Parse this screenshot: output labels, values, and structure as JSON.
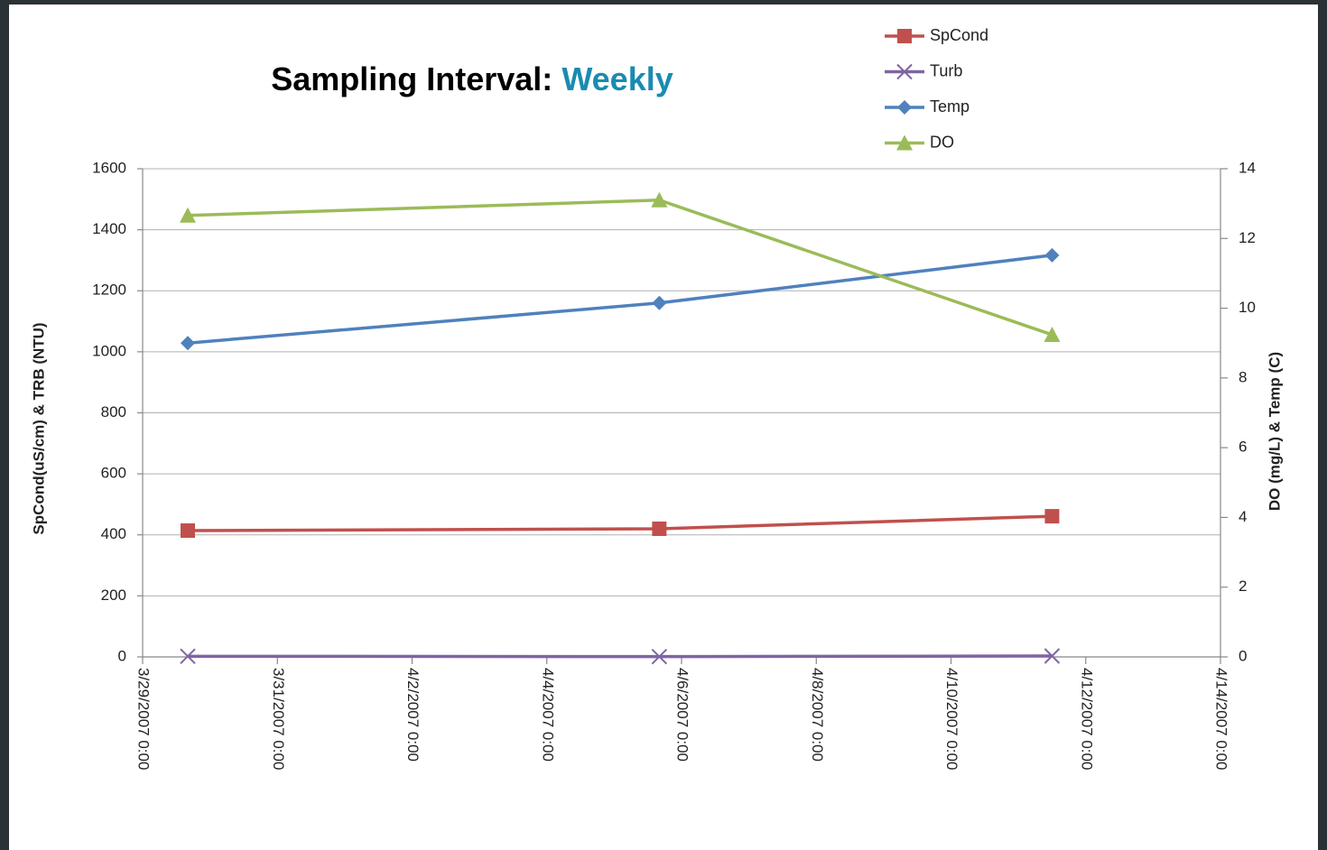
{
  "chart_data": {
    "type": "line",
    "title": [
      "Sampling Interval:",
      "Weekly"
    ],
    "title_colors": [
      "#000000",
      "#1a8bb0"
    ],
    "ylabel": "SpCond(uS/cm) & TRB (NTU)",
    "y2label": "DO (mg/L) & Temp (C)",
    "x": [
      39170.67,
      39177.67,
      39183.5
    ],
    "xlim": [
      39170,
      39186
    ],
    "xticks": [
      {
        "value": 39170,
        "label": "3/29/2007 0:00"
      },
      {
        "value": 39172,
        "label": "3/31/2007 0:00"
      },
      {
        "value": 39174,
        "label": "4/2/2007 0:00"
      },
      {
        "value": 39176,
        "label": "4/4/2007 0:00"
      },
      {
        "value": 39178,
        "label": "4/6/2007 0:00"
      },
      {
        "value": 39180,
        "label": "4/8/2007 0:00"
      },
      {
        "value": 39182,
        "label": "4/10/2007 0:00"
      },
      {
        "value": 39184,
        "label": "4/12/2007 0:00"
      },
      {
        "value": 39186,
        "label": "4/14/2007 0:00"
      }
    ],
    "ylim": [
      0,
      1600
    ],
    "yticks": [
      0,
      200,
      400,
      600,
      800,
      1000,
      1200,
      1400,
      1600
    ],
    "y2lim": [
      0,
      14
    ],
    "y2ticks": [
      0,
      2,
      4,
      6,
      8,
      10,
      12,
      14
    ],
    "grid": true,
    "legend": "top-right",
    "series": [
      {
        "name": "SpCond",
        "color": "#c0504d",
        "marker": "square",
        "values": [
          414,
          420,
          461
        ]
      },
      {
        "name": "Turb",
        "color": "#8064a2",
        "marker": "x",
        "values": [
          2,
          1,
          3
        ]
      },
      {
        "name": "Temp",
        "color": "#4f81bd",
        "marker": "diamond",
        "axis": "y2",
        "values": [
          9.0,
          10.15,
          11.52
        ]
      },
      {
        "name": "DO",
        "color": "#9bbb59",
        "marker": "triangle",
        "axis": "y2",
        "values": [
          12.66,
          13.1,
          9.24
        ]
      }
    ]
  }
}
